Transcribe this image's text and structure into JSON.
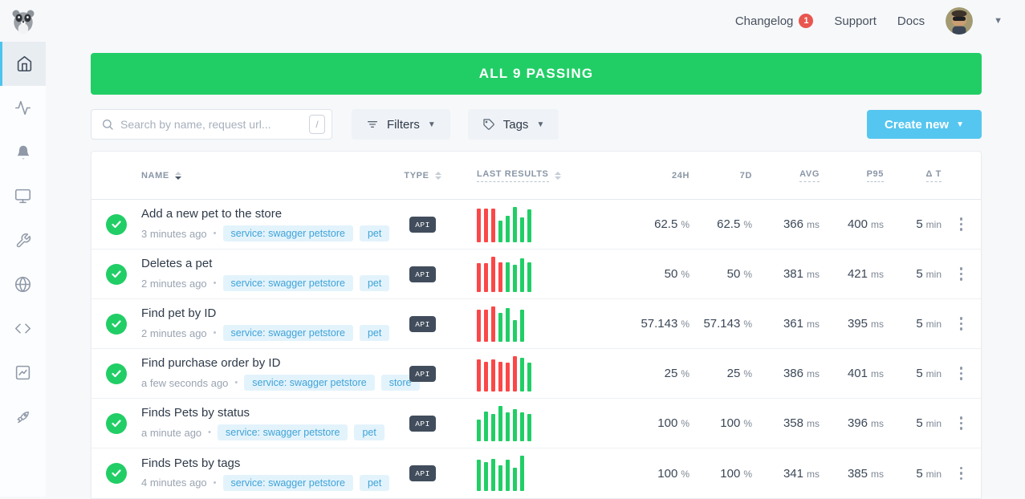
{
  "topbar": {
    "changelog_label": "Changelog",
    "changelog_badge": "1",
    "support_label": "Support",
    "docs_label": "Docs"
  },
  "sidebar": {
    "icons": [
      "home",
      "activity",
      "bell",
      "monitor",
      "wrench",
      "globe",
      "code",
      "analytics",
      "rocket"
    ],
    "active": "home"
  },
  "banner": {
    "text": "ALL 9 PASSING"
  },
  "toolbar": {
    "search_placeholder": "Search by name, request url...",
    "search_shortcut": "/",
    "filters_label": "Filters",
    "tags_label": "Tags",
    "create_label": "Create new"
  },
  "table": {
    "separator": "•",
    "headers": {
      "name": "NAME",
      "type": "TYPE",
      "last_results": "LAST RESULTS",
      "h24": "24H",
      "d7": "7D",
      "avg": "AVG",
      "p95": "P95",
      "dt": "Δ T"
    },
    "units": {
      "pct": "%",
      "ms": "ms",
      "min": "min"
    },
    "rows": [
      {
        "name": "Add a new pet to the store",
        "time": "3 minutes ago",
        "tags": [
          "service: swagger petstore",
          "pet"
        ],
        "type": "API",
        "bars": [
          {
            "c": "r",
            "h": 0.95
          },
          {
            "c": "r",
            "h": 0.95
          },
          {
            "c": "r",
            "h": 0.95
          },
          {
            "c": "g",
            "h": 0.62
          },
          {
            "c": "g",
            "h": 0.75
          },
          {
            "c": "g",
            "h": 1
          },
          {
            "c": "g",
            "h": 0.7
          },
          {
            "c": "g",
            "h": 0.93
          }
        ],
        "h24": "62.5",
        "d7": "62.5",
        "avg": "366",
        "p95": "400",
        "dt": "5"
      },
      {
        "name": "Deletes a pet",
        "time": "2 minutes ago",
        "tags": [
          "service: swagger petstore",
          "pet"
        ],
        "type": "API",
        "bars": [
          {
            "c": "r",
            "h": 0.82
          },
          {
            "c": "r",
            "h": 0.82
          },
          {
            "c": "r",
            "h": 1
          },
          {
            "c": "r",
            "h": 0.85
          },
          {
            "c": "g",
            "h": 0.85
          },
          {
            "c": "g",
            "h": 0.78
          },
          {
            "c": "g",
            "h": 0.95
          },
          {
            "c": "g",
            "h": 0.85
          }
        ],
        "h24": "50",
        "d7": "50",
        "avg": "381",
        "p95": "421",
        "dt": "5"
      },
      {
        "name": "Find pet by ID",
        "time": "2 minutes ago",
        "tags": [
          "service: swagger petstore",
          "pet"
        ],
        "type": "API",
        "bars": [
          {
            "c": "r",
            "h": 0.9
          },
          {
            "c": "r",
            "h": 0.9
          },
          {
            "c": "r",
            "h": 1
          },
          {
            "c": "g",
            "h": 0.82
          },
          {
            "c": "g",
            "h": 0.95
          },
          {
            "c": "g",
            "h": 0.62
          },
          {
            "c": "g",
            "h": 0.9
          }
        ],
        "h24": "57.143",
        "d7": "57.143",
        "avg": "361",
        "p95": "395",
        "dt": "5"
      },
      {
        "name": "Find purchase order by ID",
        "time": "a few seconds ago",
        "tags": [
          "service: swagger petstore",
          "store"
        ],
        "type": "API",
        "bars": [
          {
            "c": "r",
            "h": 0.9
          },
          {
            "c": "r",
            "h": 0.85
          },
          {
            "c": "r",
            "h": 0.9
          },
          {
            "c": "r",
            "h": 0.85
          },
          {
            "c": "r",
            "h": 0.82
          },
          {
            "c": "r",
            "h": 1
          },
          {
            "c": "g",
            "h": 0.95
          },
          {
            "c": "g",
            "h": 0.82
          }
        ],
        "h24": "25",
        "d7": "25",
        "avg": "386",
        "p95": "401",
        "dt": "5"
      },
      {
        "name": "Finds Pets by status",
        "time": "a minute ago",
        "tags": [
          "service: swagger petstore",
          "pet"
        ],
        "type": "API",
        "bars": [
          {
            "c": "g",
            "h": 0.62
          },
          {
            "c": "g",
            "h": 0.85
          },
          {
            "c": "g",
            "h": 0.78
          },
          {
            "c": "g",
            "h": 1
          },
          {
            "c": "g",
            "h": 0.82
          },
          {
            "c": "g",
            "h": 0.92
          },
          {
            "c": "g",
            "h": 0.82
          },
          {
            "c": "g",
            "h": 0.78
          }
        ],
        "h24": "100",
        "d7": "100",
        "avg": "358",
        "p95": "396",
        "dt": "5"
      },
      {
        "name": "Finds Pets by tags",
        "time": "4 minutes ago",
        "tags": [
          "service: swagger petstore",
          "pet"
        ],
        "type": "API",
        "bars": [
          {
            "c": "g",
            "h": 0.88
          },
          {
            "c": "g",
            "h": 0.82
          },
          {
            "c": "g",
            "h": 0.92
          },
          {
            "c": "g",
            "h": 0.72
          },
          {
            "c": "g",
            "h": 0.88
          },
          {
            "c": "g",
            "h": 0.65
          },
          {
            "c": "g",
            "h": 1
          }
        ],
        "h24": "100",
        "d7": "100",
        "avg": "341",
        "p95": "385",
        "dt": "5"
      }
    ]
  },
  "colors": {
    "success": "#21ce66",
    "failure": "#fb4747",
    "accent_blue": "#55c6f0",
    "badge_red": "#e8564f"
  }
}
